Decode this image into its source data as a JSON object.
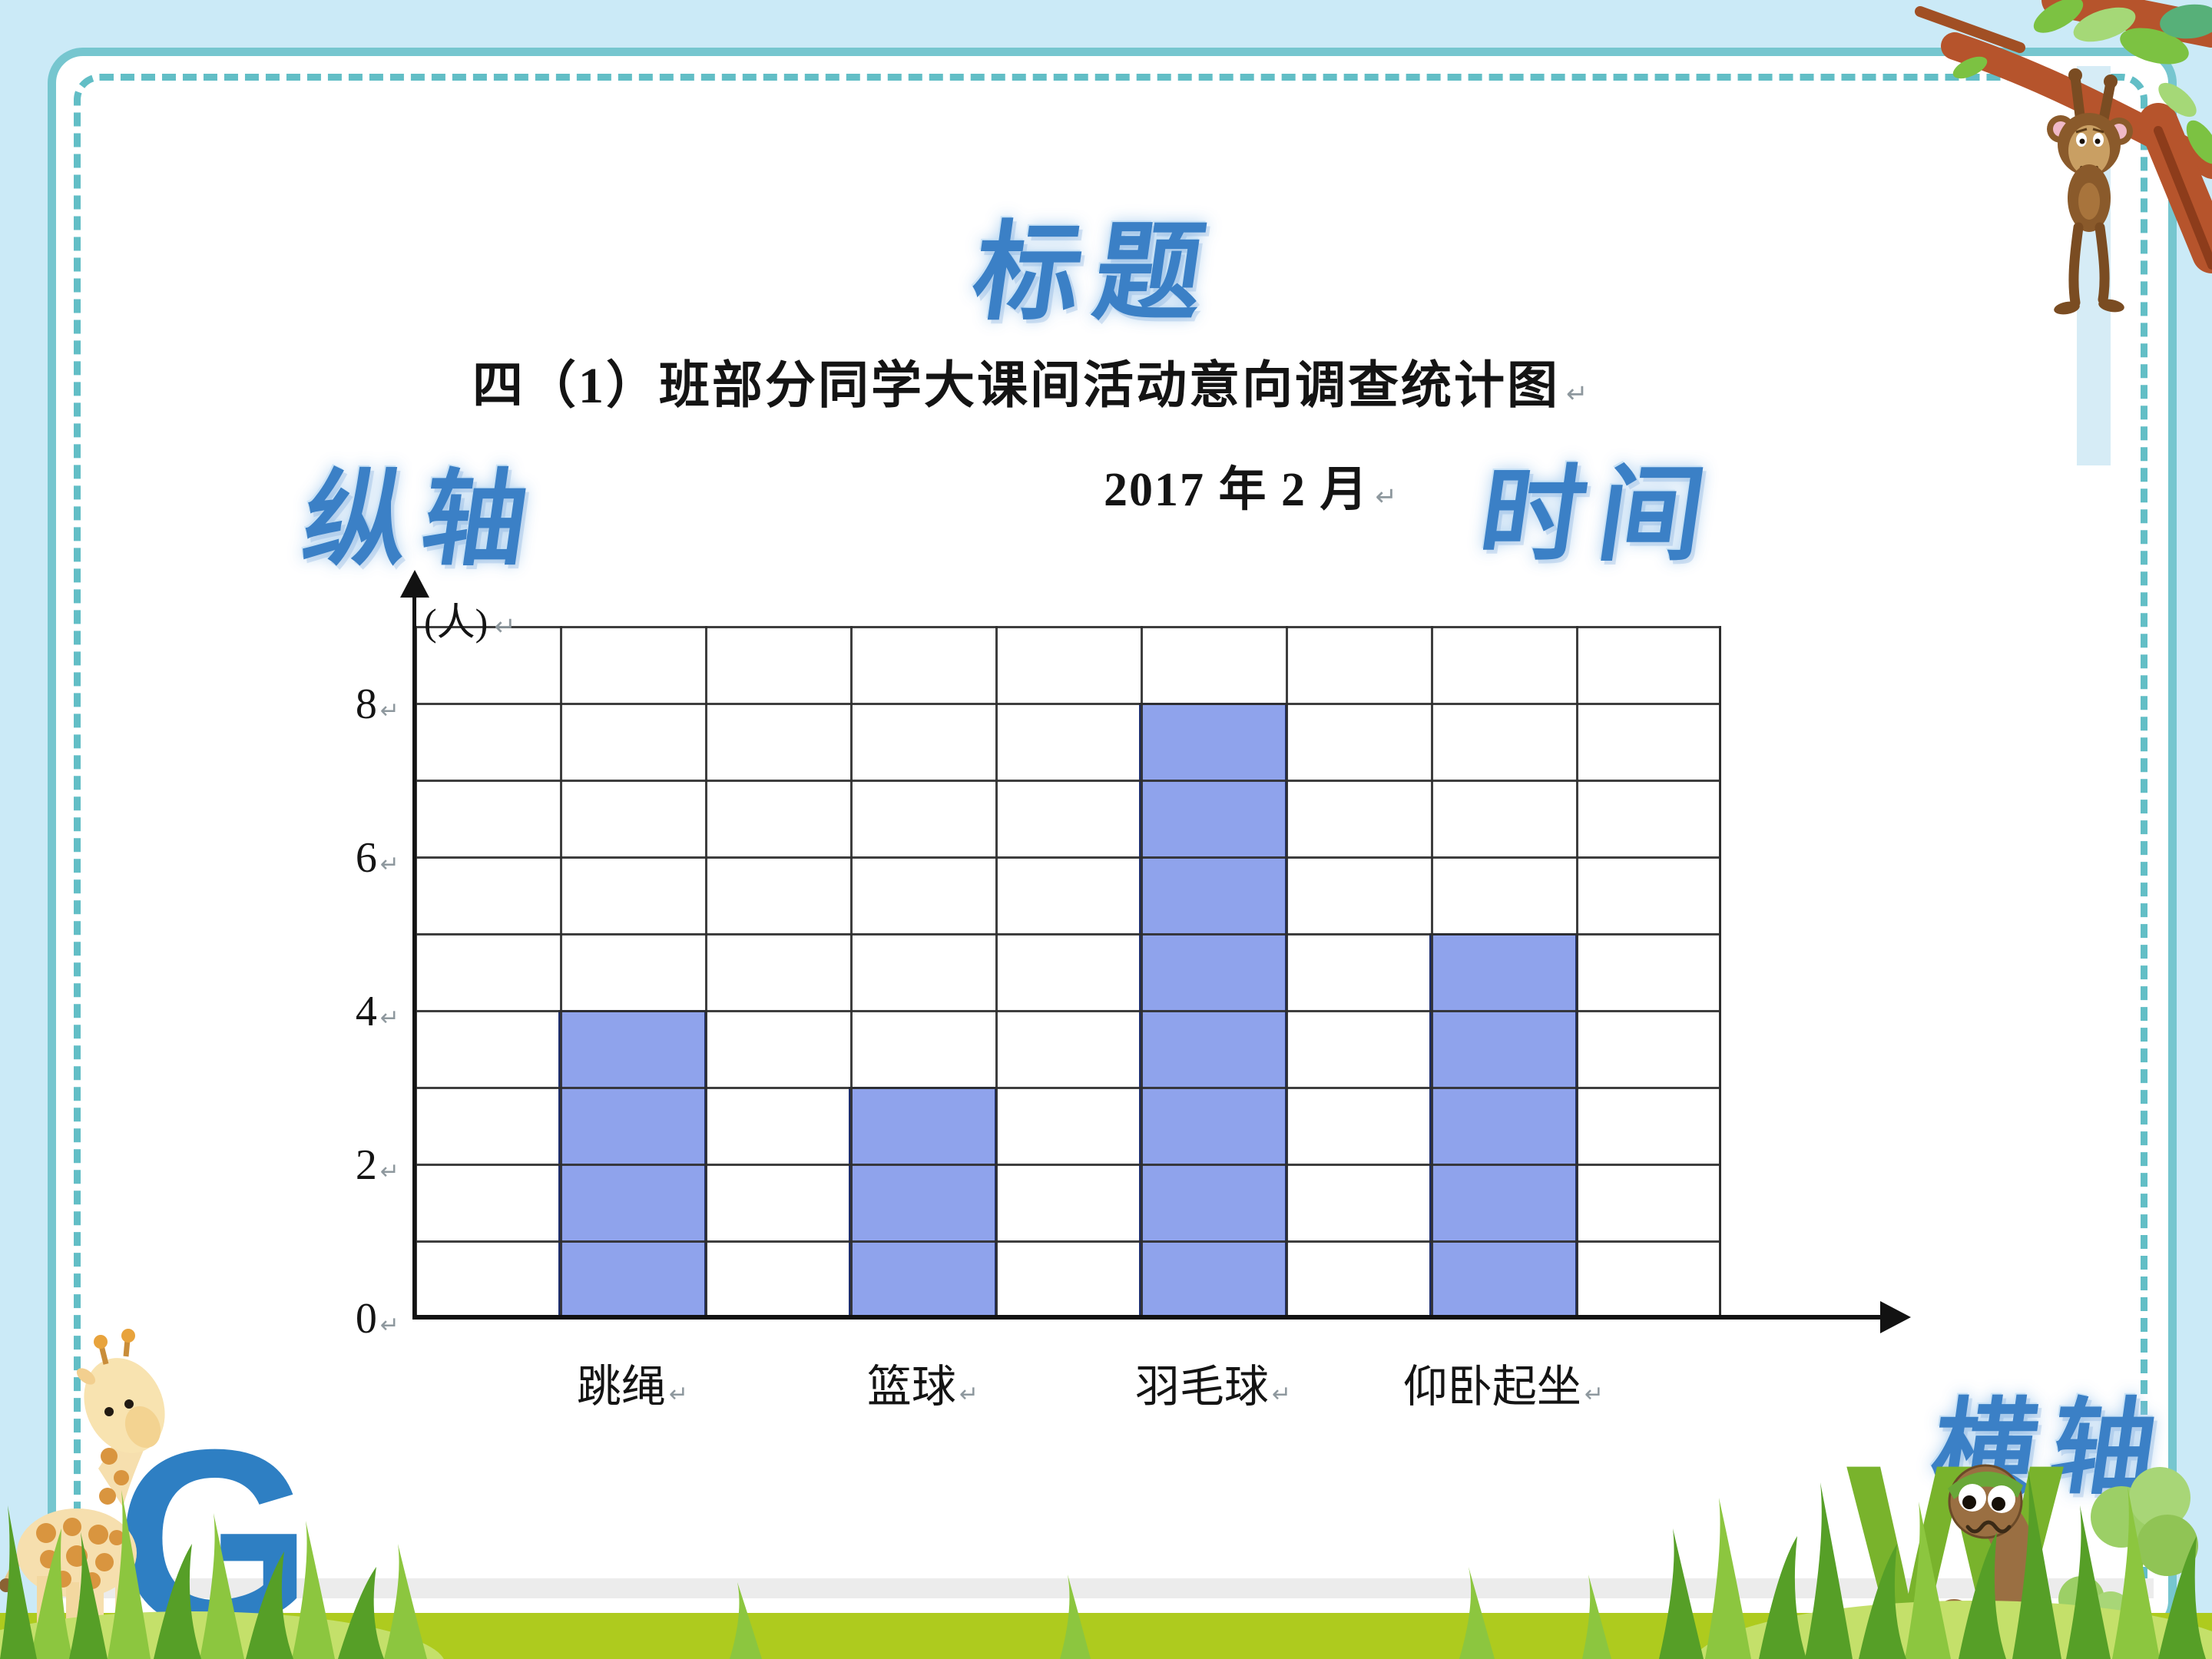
{
  "deco_labels": {
    "title": "标题",
    "vertical_axis": "纵轴",
    "time": "时间",
    "horizontal_axis": "横轴"
  },
  "marks": {
    "return_mark": "↵"
  },
  "decor_letters": {
    "giraffe": "G",
    "worm": "W"
  },
  "colors": {
    "background": "#cbeaf7",
    "panel_border": "#76c6cf",
    "dashed_border": "#62bec6",
    "deco_text": "#3b80c6",
    "bar_fill": "#8fa3ec",
    "bar_border": "#1e2f70",
    "grid_line": "#2e2e2e",
    "letter_g": "#2e7fc3",
    "letter_w": "#79b32c",
    "grass_band": "#aecb1e"
  },
  "chart_data": {
    "type": "bar",
    "title": "四（1）班部分同学大课间活动意向调查统计图",
    "date_annotation": "2017 年 2 月",
    "unit_label": "(人)",
    "categories": [
      "跳绳",
      "篮球",
      "羽毛球",
      "仰卧起坐"
    ],
    "values": [
      4,
      3,
      8,
      5
    ],
    "y_ticks": [
      0,
      2,
      4,
      6,
      8
    ],
    "ylim": [
      0,
      9
    ],
    "grid": true,
    "legend_position": "none",
    "bar_color": "#8fa3ec"
  }
}
